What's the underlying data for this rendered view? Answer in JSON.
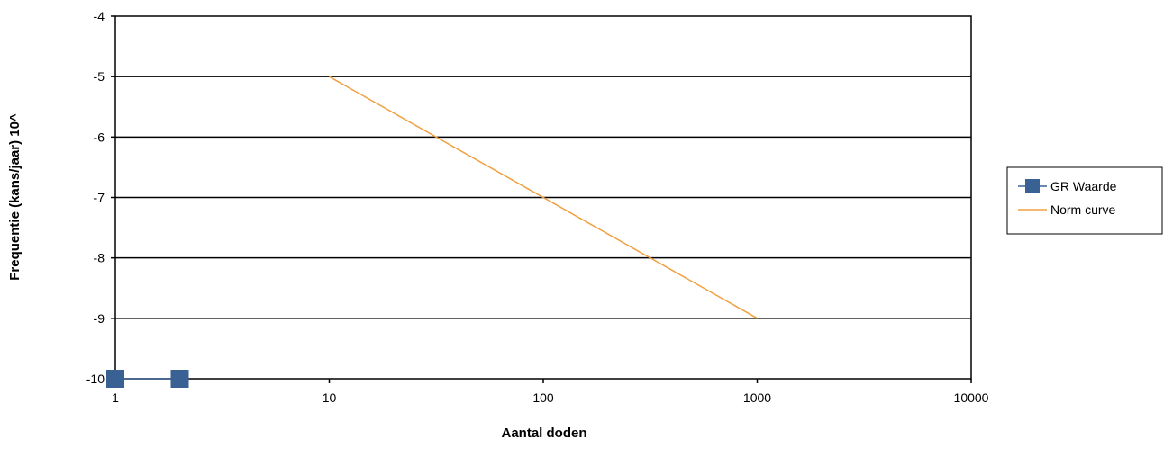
{
  "chart_data": {
    "type": "line",
    "title": "",
    "xlabel": "Aantal doden",
    "ylabel": "Frequentie (kans/jaar) 10^",
    "x_scale": "log",
    "xlim": [
      1,
      10000
    ],
    "ylim": [
      -10,
      -4
    ],
    "x_ticks": [
      1,
      10,
      100,
      1000,
      10000
    ],
    "x_tick_labels": [
      "1",
      "10",
      "100",
      "1000",
      "10000"
    ],
    "y_ticks": [
      -4,
      -5,
      -6,
      -7,
      -8,
      -9,
      -10
    ],
    "y_tick_labels": [
      "-4",
      "-5",
      "-6",
      "-7",
      "-8",
      "-9",
      "-10"
    ],
    "grid": "horizontal",
    "legend_position": "right",
    "series": [
      {
        "name": "GR Waarde",
        "color": "#3a6194",
        "marker": "square",
        "points": [
          {
            "x": 1,
            "y": -10
          },
          {
            "x": 2,
            "y": -10
          }
        ]
      },
      {
        "name": "Norm curve",
        "color": "#f0a040",
        "marker": "none",
        "points": [
          {
            "x": 10,
            "y": -5
          },
          {
            "x": 1000,
            "y": -9
          }
        ]
      }
    ]
  }
}
